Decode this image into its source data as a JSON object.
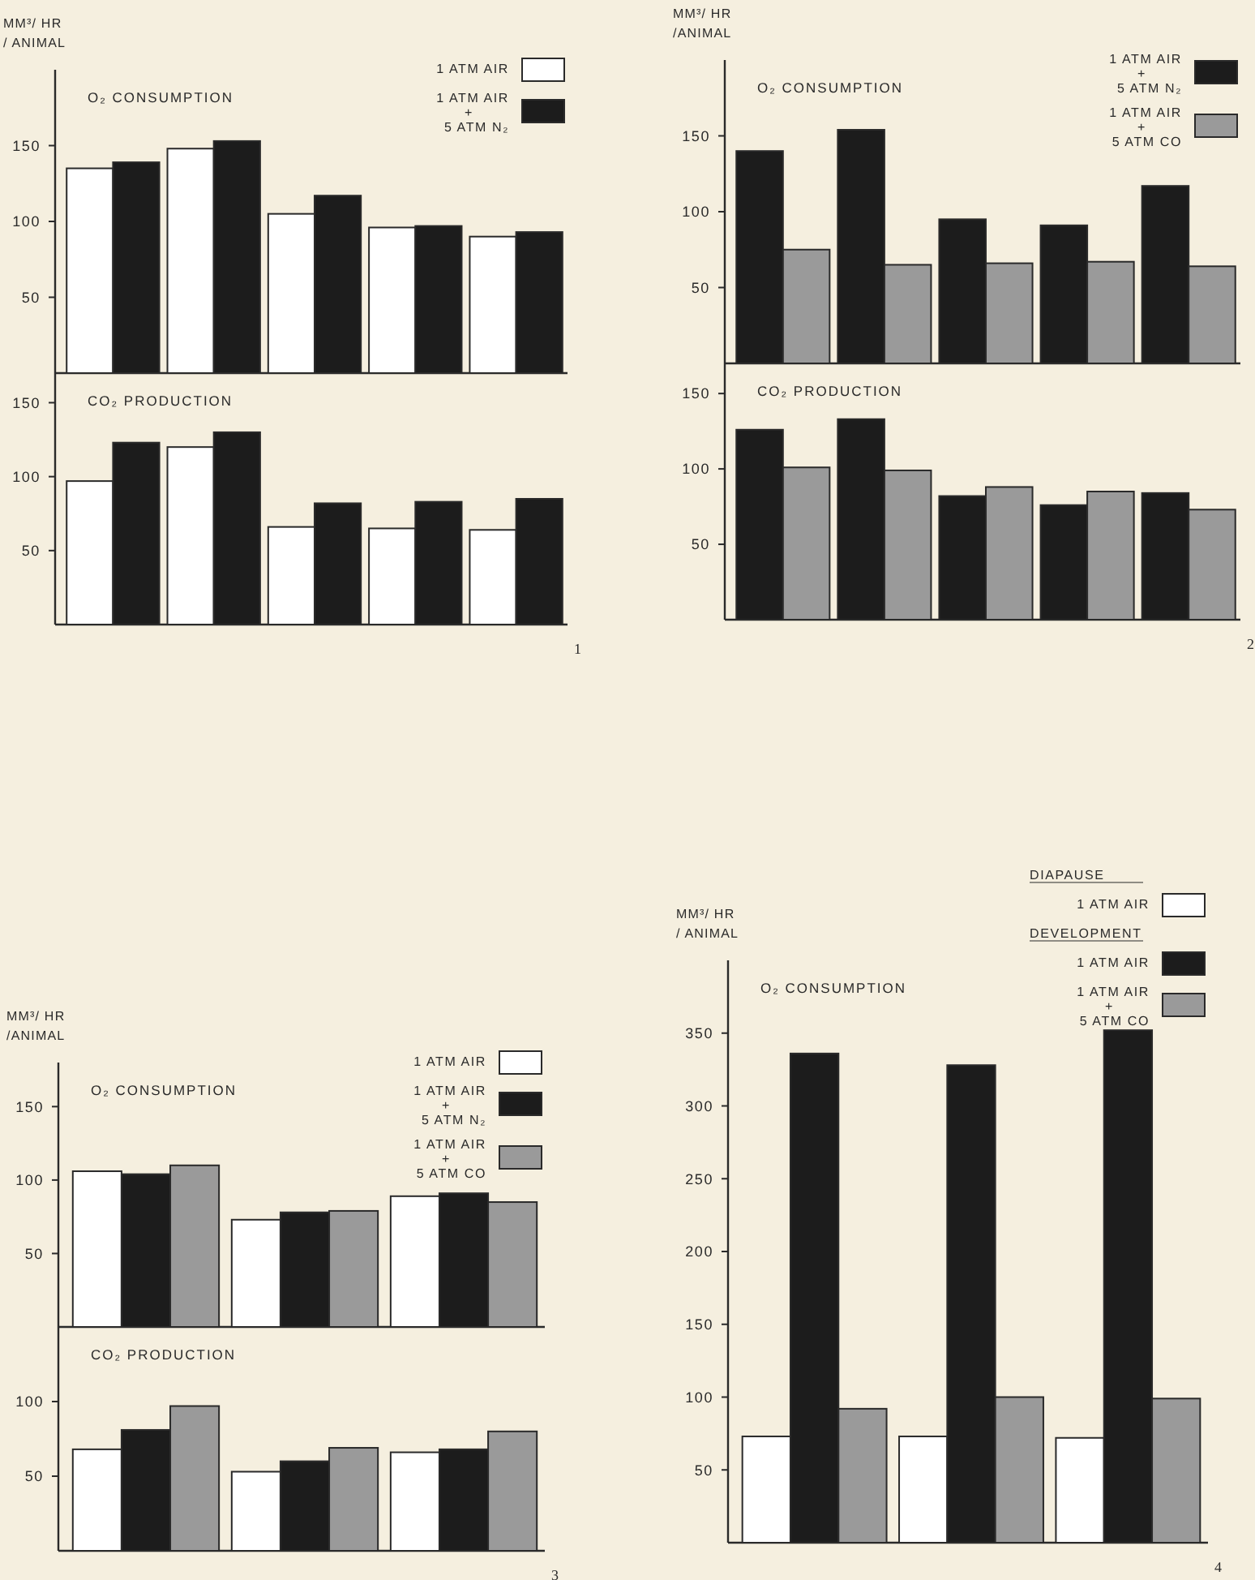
{
  "chart_data": [
    {
      "type": "bar",
      "title": "O₂ CONSUMPTION",
      "ylabel": "MM³/ HR\n/ ANIMAL",
      "categories": [
        null,
        null,
        null,
        null,
        null
      ],
      "series": [
        {
          "name": "1 ATM AIR",
          "color": "#ffffff",
          "values": [
            135,
            148,
            105,
            96,
            90
          ]
        },
        {
          "name": "1 ATM AIR + 5 ATM N₂",
          "color": "#1c1c1c",
          "values": [
            139,
            153,
            117,
            97,
            93
          ]
        }
      ],
      "ylim": [
        0,
        200
      ],
      "yticks": [
        50,
        100,
        150
      ],
      "grid": false,
      "legend": "top right",
      "tick_labels": "y"
    },
    {
      "type": "bar",
      "title": "CO₂ PRODUCTION",
      "categories": [
        null,
        null,
        null,
        null,
        null
      ],
      "series": [
        {
          "color": "#ffffff",
          "values": [
            97,
            120,
            66,
            65,
            64
          ]
        },
        {
          "color": "#1c1c1c",
          "values": [
            123,
            130,
            82,
            83,
            85
          ]
        }
      ],
      "ylim": [
        0,
        170
      ],
      "yticks": [
        50,
        100,
        150
      ],
      "grid": false,
      "tick_labels": "y",
      "annotations": [
        "1"
      ]
    },
    {
      "type": "bar",
      "title": "O₂ CONSUMPTION",
      "ylabel": "MM³/ HR\n/ANIMAL",
      "categories": [
        null,
        null,
        null,
        null,
        null
      ],
      "series": [
        {
          "name": "1 ATM AIR + 5 ATM N₂",
          "color": "#1c1c1c",
          "values": [
            140,
            154,
            95,
            91,
            117
          ]
        },
        {
          "name": "1 ATM AIR + 5 ATM CO",
          "color": "#9a9a9a",
          "values": [
            75,
            65,
            66,
            67,
            64
          ]
        }
      ],
      "ylim": [
        0,
        200
      ],
      "yticks": [
        50,
        100,
        150
      ],
      "grid": false,
      "legend": "top right",
      "tick_labels": "y"
    },
    {
      "type": "bar",
      "title": "CO₂ PRODUCTION",
      "categories": [
        null,
        null,
        null,
        null,
        null
      ],
      "series": [
        {
          "color": "#1c1c1c",
          "values": [
            126,
            133,
            82,
            76,
            84
          ]
        },
        {
          "color": "#9a9a9a",
          "values": [
            101,
            99,
            88,
            85,
            73
          ]
        }
      ],
      "ylim": [
        0,
        170
      ],
      "yticks": [
        50,
        100,
        150
      ],
      "grid": false,
      "tick_labels": "y",
      "annotations": [
        "2"
      ]
    },
    {
      "type": "bar",
      "title": "O₂ CONSUMPTION",
      "ylabel": "MM³/ HR\n/ANIMAL",
      "categories": [
        null,
        null,
        null
      ],
      "series": [
        {
          "name": "1 ATM AIR",
          "color": "#ffffff",
          "values": [
            106,
            73,
            89
          ]
        },
        {
          "name": "1 ATM AIR + 5 ATM N₂",
          "color": "#1c1c1c",
          "values": [
            104,
            78,
            91
          ]
        },
        {
          "name": "1 ATM AIR + 5 ATM CO",
          "color": "#9a9a9a",
          "values": [
            110,
            79,
            85
          ]
        }
      ],
      "ylim": [
        0,
        180
      ],
      "yticks": [
        50,
        100,
        150
      ],
      "grid": false,
      "legend": "top right",
      "tick_labels": "y"
    },
    {
      "type": "bar",
      "title": "CO₂ PRODUCTION",
      "categories": [
        null,
        null,
        null
      ],
      "series": [
        {
          "color": "#ffffff",
          "values": [
            68,
            53,
            66
          ]
        },
        {
          "color": "#1c1c1c",
          "values": [
            81,
            60,
            68
          ]
        },
        {
          "color": "#9a9a9a",
          "values": [
            97,
            69,
            80
          ]
        }
      ],
      "ylim": [
        0,
        150
      ],
      "yticks": [
        50,
        100
      ],
      "grid": false,
      "tick_labels": "y",
      "annotations": [
        "3"
      ]
    },
    {
      "type": "bar",
      "title": "O₂ CONSUMPTION",
      "ylabel": "MM³/ HR\n/ ANIMAL",
      "categories": [
        null,
        null,
        null
      ],
      "series": [
        {
          "name": "1 ATM AIR",
          "color": "#ffffff",
          "values": [
            73,
            73,
            72
          ]
        },
        {
          "name": "1 ATM AIR",
          "color": "#1c1c1c",
          "values": [
            336,
            328,
            352
          ]
        },
        {
          "name": "1 ATM AIR + 5 ATM CO",
          "color": "#9a9a9a",
          "values": [
            92,
            100,
            99
          ]
        }
      ],
      "ylim": [
        0,
        400
      ],
      "yticks": [
        50,
        100,
        150,
        200,
        250,
        300,
        350
      ],
      "grid": false,
      "legend": "top right",
      "tick_labels": "y",
      "annotations": [
        "DIAPAUSE",
        "DEVELOPMENT",
        "4"
      ]
    }
  ]
}
